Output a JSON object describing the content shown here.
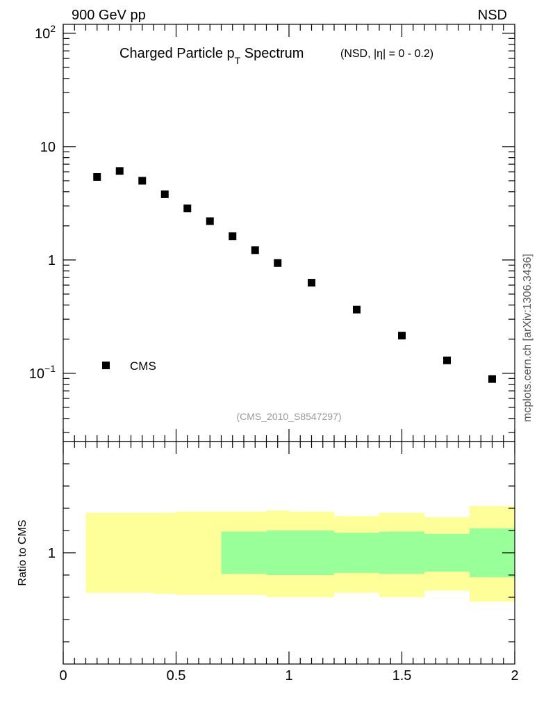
{
  "header": {
    "left": "900 GeV pp",
    "right": "NSD"
  },
  "watermark": "mcplots.cern.ch [arXiv:1306.3436]",
  "colors": {
    "marker": "#000000",
    "band_outer": "#ffff99",
    "band_inner": "#99ff99",
    "analysis_tag": "#999999"
  },
  "chart_data": [
    {
      "type": "scatter",
      "title": {
        "main": "Charged Particle p",
        "sub": "T",
        "tail": " Spectrum",
        "cut": "(NSD, |η| =   0 - 0.2)"
      },
      "analysis_tag": "(CMS_2010_S8547297)",
      "yscale": "log",
      "ylim": [
        0.025,
        120
      ],
      "xlim": [
        0,
        2
      ],
      "ytick_labels": [
        {
          "value": 100,
          "base": "10",
          "exp": "2"
        },
        {
          "value": 10,
          "base": "10",
          "exp": ""
        },
        {
          "value": 1,
          "base": "1",
          "exp": ""
        },
        {
          "value": 0.1,
          "base": "10",
          "exp": "−1"
        }
      ],
      "legend": {
        "position": "bottom-left",
        "entries": [
          "CMS"
        ]
      },
      "series": [
        {
          "name": "CMS",
          "marker": "square",
          "x": [
            0.15,
            0.25,
            0.35,
            0.45,
            0.55,
            0.65,
            0.75,
            0.85,
            0.95,
            1.1,
            1.3,
            1.5,
            1.7,
            1.9
          ],
          "y": [
            5.4,
            6.1,
            5.0,
            3.8,
            2.85,
            2.2,
            1.62,
            1.22,
            0.94,
            0.63,
            0.365,
            0.215,
            0.13,
            0.089
          ]
        }
      ]
    },
    {
      "type": "area",
      "ylabel": "Ratio to CMS",
      "ylim": [
        0.5,
        1.5
      ],
      "xlim": [
        0,
        2
      ],
      "ytick_labels": [
        {
          "value": 1,
          "label": "1"
        }
      ],
      "xtick_labels": [
        {
          "value": 0,
          "label": "0"
        },
        {
          "value": 0.5,
          "label": "0.5"
        },
        {
          "value": 1,
          "label": "1"
        },
        {
          "value": 1.5,
          "label": "1.5"
        },
        {
          "value": 2,
          "label": "2"
        }
      ],
      "outer_band": [
        {
          "x0": 0.1,
          "x1": 0.2,
          "lo": 0.82,
          "hi": 1.18
        },
        {
          "x0": 0.2,
          "x1": 0.3,
          "lo": 0.82,
          "hi": 1.18
        },
        {
          "x0": 0.3,
          "x1": 0.4,
          "lo": 0.82,
          "hi": 1.18
        },
        {
          "x0": 0.4,
          "x1": 0.5,
          "lo": 0.815,
          "hi": 1.18
        },
        {
          "x0": 0.5,
          "x1": 0.6,
          "lo": 0.81,
          "hi": 1.185
        },
        {
          "x0": 0.6,
          "x1": 0.7,
          "lo": 0.81,
          "hi": 1.185
        },
        {
          "x0": 0.7,
          "x1": 0.8,
          "lo": 0.81,
          "hi": 1.185
        },
        {
          "x0": 0.8,
          "x1": 0.9,
          "lo": 0.81,
          "hi": 1.185
        },
        {
          "x0": 0.9,
          "x1": 1.0,
          "lo": 0.8,
          "hi": 1.19
        },
        {
          "x0": 1.0,
          "x1": 1.2,
          "lo": 0.8,
          "hi": 1.185
        },
        {
          "x0": 1.2,
          "x1": 1.4,
          "lo": 0.82,
          "hi": 1.165
        },
        {
          "x0": 1.4,
          "x1": 1.6,
          "lo": 0.8,
          "hi": 1.18
        },
        {
          "x0": 1.6,
          "x1": 1.8,
          "lo": 0.83,
          "hi": 1.16
        },
        {
          "x0": 1.8,
          "x1": 2.0,
          "lo": 0.78,
          "hi": 1.21
        }
      ],
      "inner_band": [
        {
          "x0": 0.7,
          "x1": 0.8,
          "lo": 0.905,
          "hi": 1.095
        },
        {
          "x0": 0.8,
          "x1": 0.9,
          "lo": 0.905,
          "hi": 1.095
        },
        {
          "x0": 0.9,
          "x1": 1.0,
          "lo": 0.9,
          "hi": 1.1
        },
        {
          "x0": 1.0,
          "x1": 1.2,
          "lo": 0.9,
          "hi": 1.1
        },
        {
          "x0": 1.2,
          "x1": 1.4,
          "lo": 0.91,
          "hi": 1.09
        },
        {
          "x0": 1.4,
          "x1": 1.6,
          "lo": 0.905,
          "hi": 1.095
        },
        {
          "x0": 1.6,
          "x1": 1.8,
          "lo": 0.915,
          "hi": 1.085
        },
        {
          "x0": 1.8,
          "x1": 2.0,
          "lo": 0.89,
          "hi": 1.11
        }
      ]
    }
  ]
}
